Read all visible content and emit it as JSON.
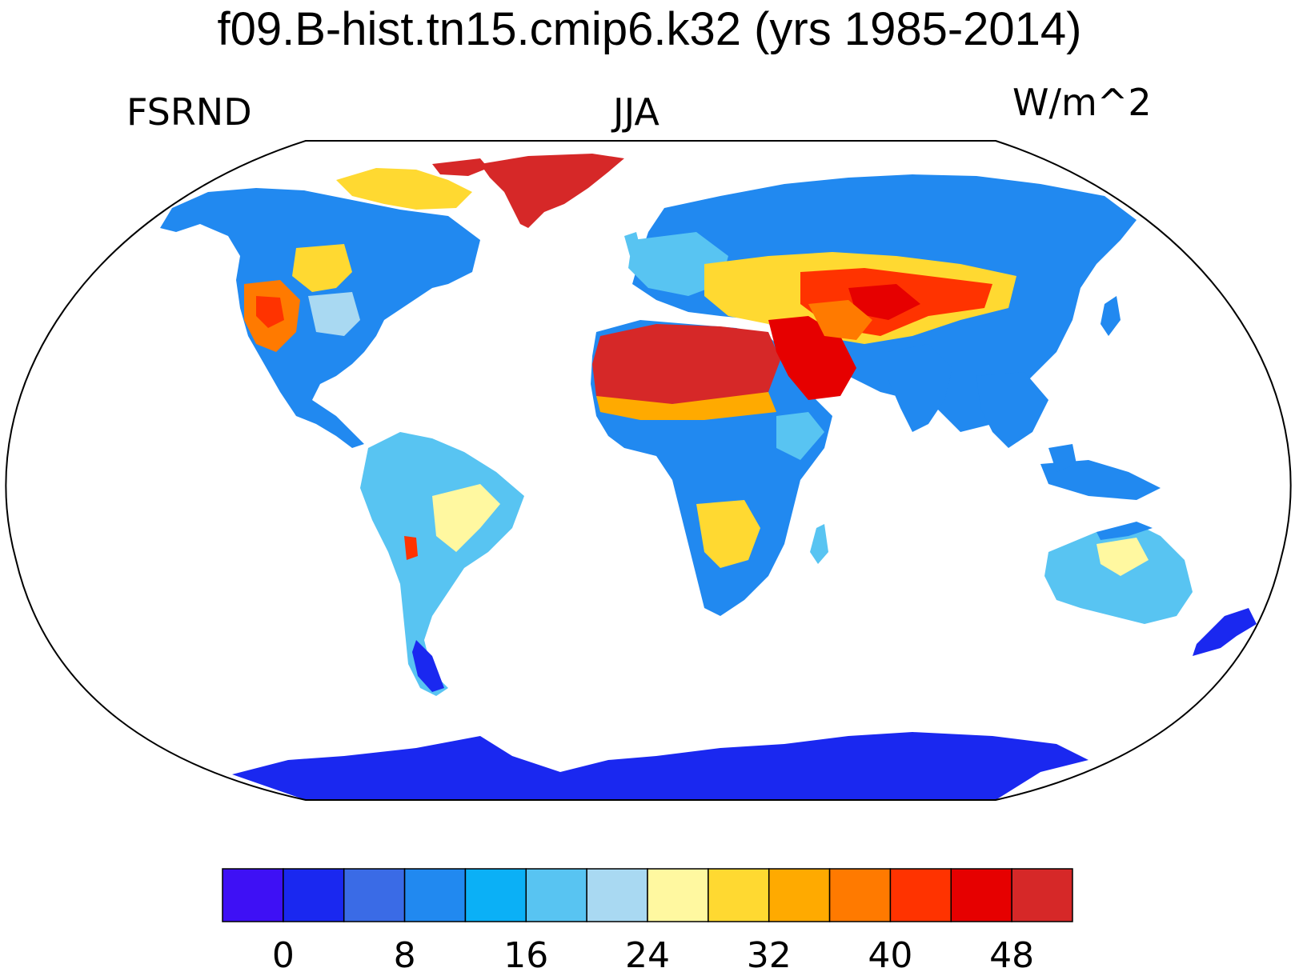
{
  "title": "f09.B-hist.tn15.cmip6.k32 (yrs 1985-2014)",
  "left_label": "FSRND",
  "center_label": "JJA",
  "right_label": "W/m^2",
  "colorbar": {
    "colors": [
      "#3e10f5",
      "#1a28f0",
      "#3a6be6",
      "#2189f0",
      "#0bb0f6",
      "#58c4f2",
      "#a9d9f2",
      "#fff8a0",
      "#ffd931",
      "#ffaa00",
      "#ff7a00",
      "#ff3300",
      "#e60000",
      "#d62828"
    ],
    "tick_labels": [
      "0",
      "8",
      "16",
      "24",
      "32",
      "40",
      "48"
    ]
  },
  "map": {
    "projection": "robinson",
    "regions": [
      {
        "name": "antarctica",
        "color": "#1a28f0"
      },
      {
        "name": "greenland",
        "color": "#d62828"
      },
      {
        "name": "north-america",
        "color": "#2189f0"
      },
      {
        "name": "western-us",
        "color": "#ff7a00"
      },
      {
        "name": "great-plains",
        "color": "#ffd931"
      },
      {
        "name": "south-america",
        "color": "#58c4f2"
      },
      {
        "name": "brazil-highlands",
        "color": "#fff8a0"
      },
      {
        "name": "patagonia",
        "color": "#1a28f0"
      },
      {
        "name": "europe",
        "color": "#58c4f2"
      },
      {
        "name": "siberia",
        "color": "#2189f0"
      },
      {
        "name": "sahara",
        "color": "#d62828"
      },
      {
        "name": "arabia",
        "color": "#e60000"
      },
      {
        "name": "central-asia",
        "color": "#ff3300"
      },
      {
        "name": "sahel",
        "color": "#ffaa00"
      },
      {
        "name": "central-africa",
        "color": "#2189f0"
      },
      {
        "name": "southern-africa",
        "color": "#ffd931"
      },
      {
        "name": "india",
        "color": "#2189f0"
      },
      {
        "name": "southeast-asia",
        "color": "#2189f0"
      },
      {
        "name": "australia",
        "color": "#58c4f2"
      },
      {
        "name": "australia-center",
        "color": "#fff8a0"
      },
      {
        "name": "new-zealand",
        "color": "#1a28f0"
      }
    ]
  }
}
